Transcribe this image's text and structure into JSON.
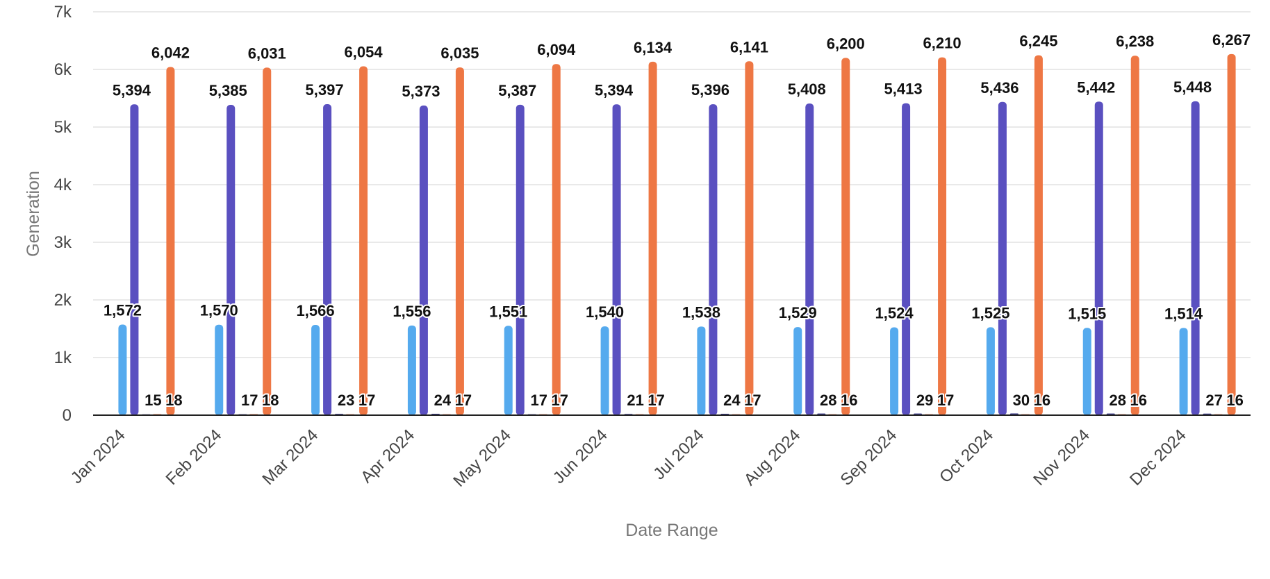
{
  "chart_data": {
    "type": "bar",
    "xlabel": "Date Range",
    "ylabel": "Generation",
    "ylim": [
      0,
      7000
    ],
    "yticks": [
      0,
      1000,
      2000,
      3000,
      4000,
      5000,
      6000,
      7000
    ],
    "ytick_labels": [
      "0",
      "1k",
      "2k",
      "3k",
      "4k",
      "5k",
      "6k",
      "7k"
    ],
    "grid": true,
    "legend": "none",
    "categories": [
      "Jan 2024",
      "Feb 2024",
      "Mar 2024",
      "Apr 2024",
      "May 2024",
      "Jun 2024",
      "Jul 2024",
      "Aug 2024",
      "Sep 2024",
      "Oct 2024",
      "Nov 2024",
      "Dec 2024"
    ],
    "series": [
      {
        "color": "#55aaee",
        "values": [
          1572,
          1570,
          1566,
          1556,
          1551,
          1540,
          1538,
          1529,
          1524,
          1525,
          1515,
          1514
        ],
        "labels": [
          "1,572",
          "1,570",
          "1,566",
          "1,556",
          "1,551",
          "1,540",
          "1,538",
          "1,529",
          "1,524",
          "1,525",
          "1,515",
          "1,514"
        ]
      },
      {
        "color": "#5a50c0",
        "values": [
          5394,
          5385,
          5397,
          5373,
          5387,
          5394,
          5396,
          5408,
          5413,
          5436,
          5442,
          5448
        ],
        "labels": [
          "5,394",
          "5,385",
          "5,397",
          "5,373",
          "5,387",
          "5,394",
          "5,396",
          "5,408",
          "5,413",
          "5,436",
          "5,442",
          "5,448"
        ]
      },
      {
        "color": "#3a3a8a",
        "values": [
          15,
          17,
          23,
          24,
          17,
          21,
          24,
          28,
          29,
          30,
          28,
          27
        ],
        "labels": [
          "15",
          "17",
          "23",
          "24",
          "17",
          "21",
          "24",
          "28",
          "29",
          "30",
          "28",
          "27"
        ]
      },
      {
        "color": "#f07a45",
        "values": [
          18,
          18,
          17,
          17,
          17,
          17,
          17,
          16,
          17,
          16,
          16,
          16
        ],
        "labels": [
          "18",
          "18",
          "17",
          "17",
          "17",
          "17",
          "17",
          "16",
          "17",
          "16",
          "16",
          "16"
        ]
      },
      {
        "color": "#ee7744",
        "values": [
          6042,
          6031,
          6054,
          6035,
          6094,
          6134,
          6141,
          6200,
          6210,
          6245,
          6238,
          6267
        ],
        "labels": [
          "6,042",
          "6,031",
          "6,054",
          "6,035",
          "6,094",
          "6,134",
          "6,141",
          "6,200",
          "6,210",
          "6,245",
          "6,238",
          "6,267"
        ]
      }
    ]
  }
}
